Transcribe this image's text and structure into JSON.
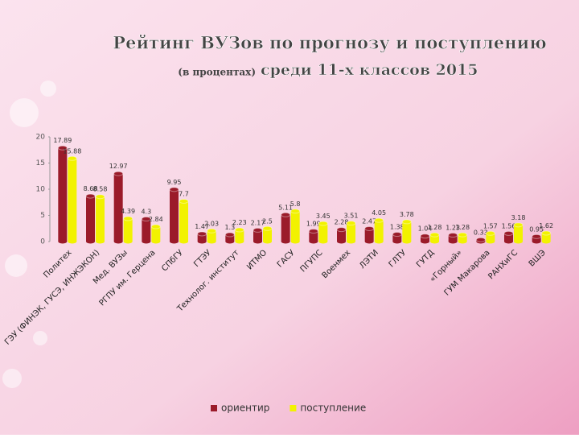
{
  "chart_data": {
    "type": "bar",
    "title": "Рейтинг ВУЗов по прогнозу и поступлению",
    "subtitle_note": "(в процентах)",
    "subtitle": "среди 11-х классов 2015",
    "categories": [
      "Политех",
      "ГЭУ (ФИНЭК, ГУСЭ, ИНЖЭКОН)",
      "Мед. ВУЗы",
      "РГПУ им. Герцена",
      "СПбГУ",
      "ГТЭУ",
      "Технолог. институт",
      "ИТМО",
      "ГАСУ",
      "ПГУПС",
      "Военмех",
      "ЛЭТИ",
      "ГЛТУ",
      "ГУТД",
      "«Горный»",
      "ГУМ Макарова",
      "РАНХиГС",
      "ВШЭ"
    ],
    "series": [
      {
        "name": "ориентир",
        "color": "#9b1b2a",
        "values": [
          17.89,
          8.68,
          12.97,
          4.3,
          9.95,
          1.47,
          1.3,
          2.17,
          5.11,
          1.99,
          2.28,
          2.47,
          1.38,
          1.04,
          1.23,
          0.33,
          1.56,
          0.95
        ]
      },
      {
        "name": "поступление",
        "color": "#f2f200",
        "values": [
          15.88,
          8.58,
          4.39,
          2.84,
          7.7,
          2.03,
          2.23,
          2.5,
          5.8,
          3.45,
          3.51,
          4.05,
          3.78,
          1.28,
          1.28,
          1.57,
          3.18,
          1.62
        ]
      }
    ],
    "ylim": [
      0,
      20
    ],
    "yticks": [
      0,
      5,
      10,
      15,
      20
    ],
    "legend": "bottom"
  }
}
